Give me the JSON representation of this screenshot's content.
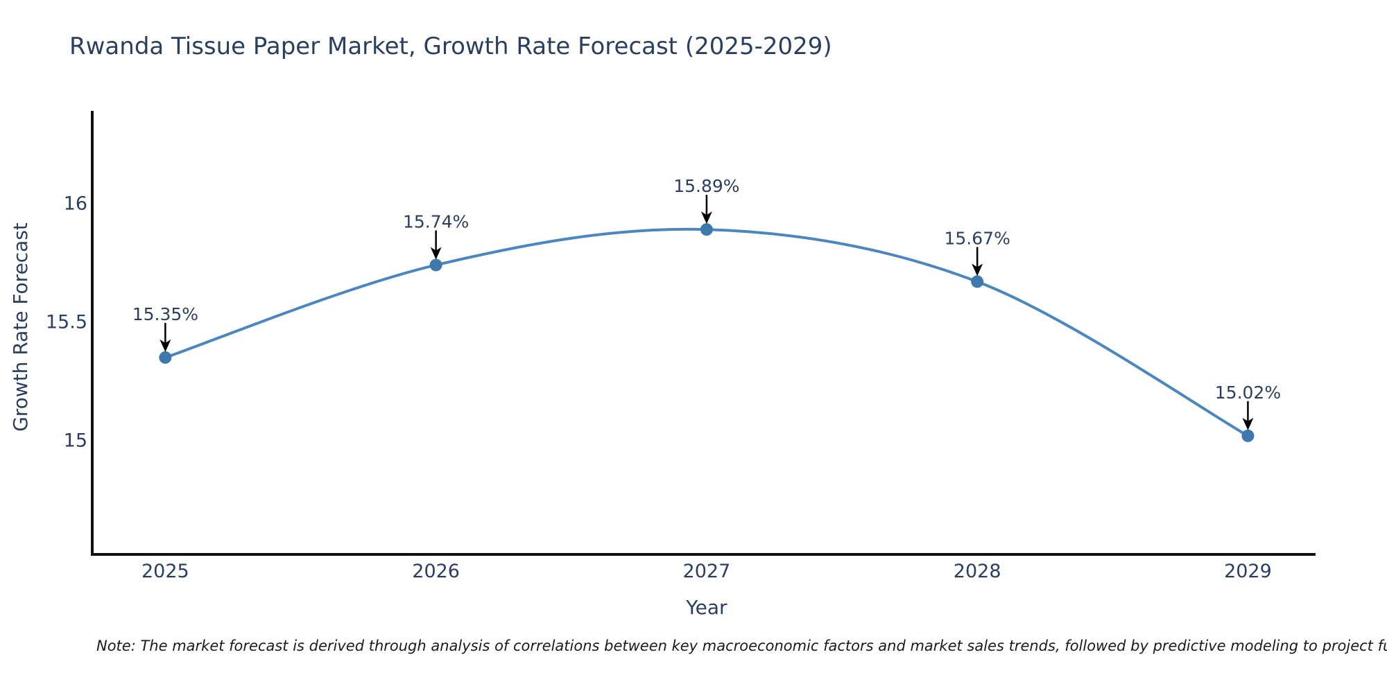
{
  "title": "Rwanda Tissue Paper Market, Growth Rate Forecast (2025-2029)",
  "note": "Note: The market forecast is derived through analysis of correlations between key macroeconomic factors and market sales trends, followed by predictive modeling to project future sal",
  "colors": {
    "title_text": "#2a3f5f",
    "axis_text": "#2a3f5f",
    "axis_line": "#101010",
    "series_line": "#4a86bf",
    "marker_fill": "#3f78ad",
    "annotation_text": "#2a3f5f",
    "arrow": "#000000",
    "background": "#ffffff"
  },
  "chart_data": {
    "type": "line",
    "title": "Rwanda Tissue Paper Market, Growth Rate Forecast (2025-2029)",
    "x": [
      2025,
      2026,
      2027,
      2028,
      2029
    ],
    "series": [
      {
        "name": "Growth Rate Forecast",
        "values": [
          15.35,
          15.74,
          15.89,
          15.67,
          15.02
        ]
      }
    ],
    "point_labels": [
      "15.35%",
      "15.74%",
      "15.89%",
      "15.67%",
      "15.02%"
    ],
    "xlabel": "Year",
    "ylabel": "Growth Rate Forecast",
    "xticks": [
      "2025",
      "2026",
      "2027",
      "2028",
      "2029"
    ],
    "xtick_values": [
      2025,
      2026,
      2027,
      2028,
      2029
    ],
    "yticks": [
      "15",
      "15.5",
      "16"
    ],
    "ytick_values": [
      15,
      15.5,
      16
    ],
    "xlim": [
      2024.73,
      2029.25
    ],
    "ylim": [
      14.52,
      16.39
    ],
    "grid": false,
    "legend": false,
    "line_shape": "spline",
    "marker": "circle"
  }
}
